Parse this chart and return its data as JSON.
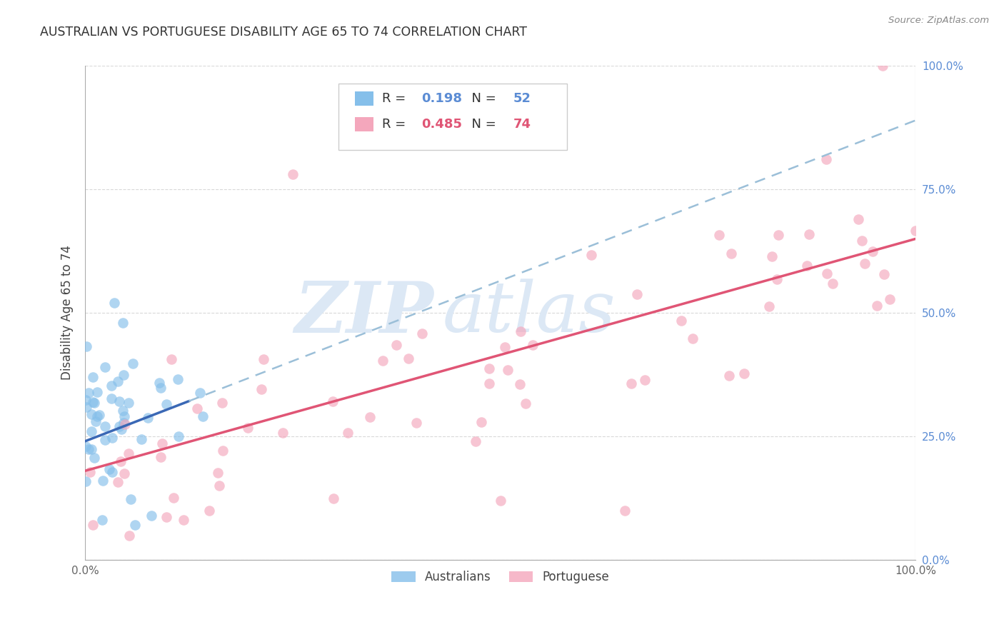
{
  "title": "AUSTRALIAN VS PORTUGUESE DISABILITY AGE 65 TO 74 CORRELATION CHART",
  "source": "Source: ZipAtlas.com",
  "ylabel": "Disability Age 65 to 74",
  "aus_color": "#85bfea",
  "por_color": "#f4a7bc",
  "aus_line_color": "#3a68b5",
  "por_line_color": "#e05575",
  "aus_dash_color": "#9bbfd8",
  "background_color": "#ffffff",
  "grid_color": "#d0d0d0",
  "title_color": "#333333",
  "axis_tick_color": "#5b8cd4",
  "watermark_color": "#dce8f5",
  "aus_R": 0.198,
  "aus_N": 52,
  "por_R": 0.485,
  "por_N": 74,
  "legend_R_color_aus": "#5b8cd4",
  "legend_N_color_aus": "#5b8cd4",
  "legend_R_color_por": "#e05575",
  "legend_N_color_por": "#e05575"
}
